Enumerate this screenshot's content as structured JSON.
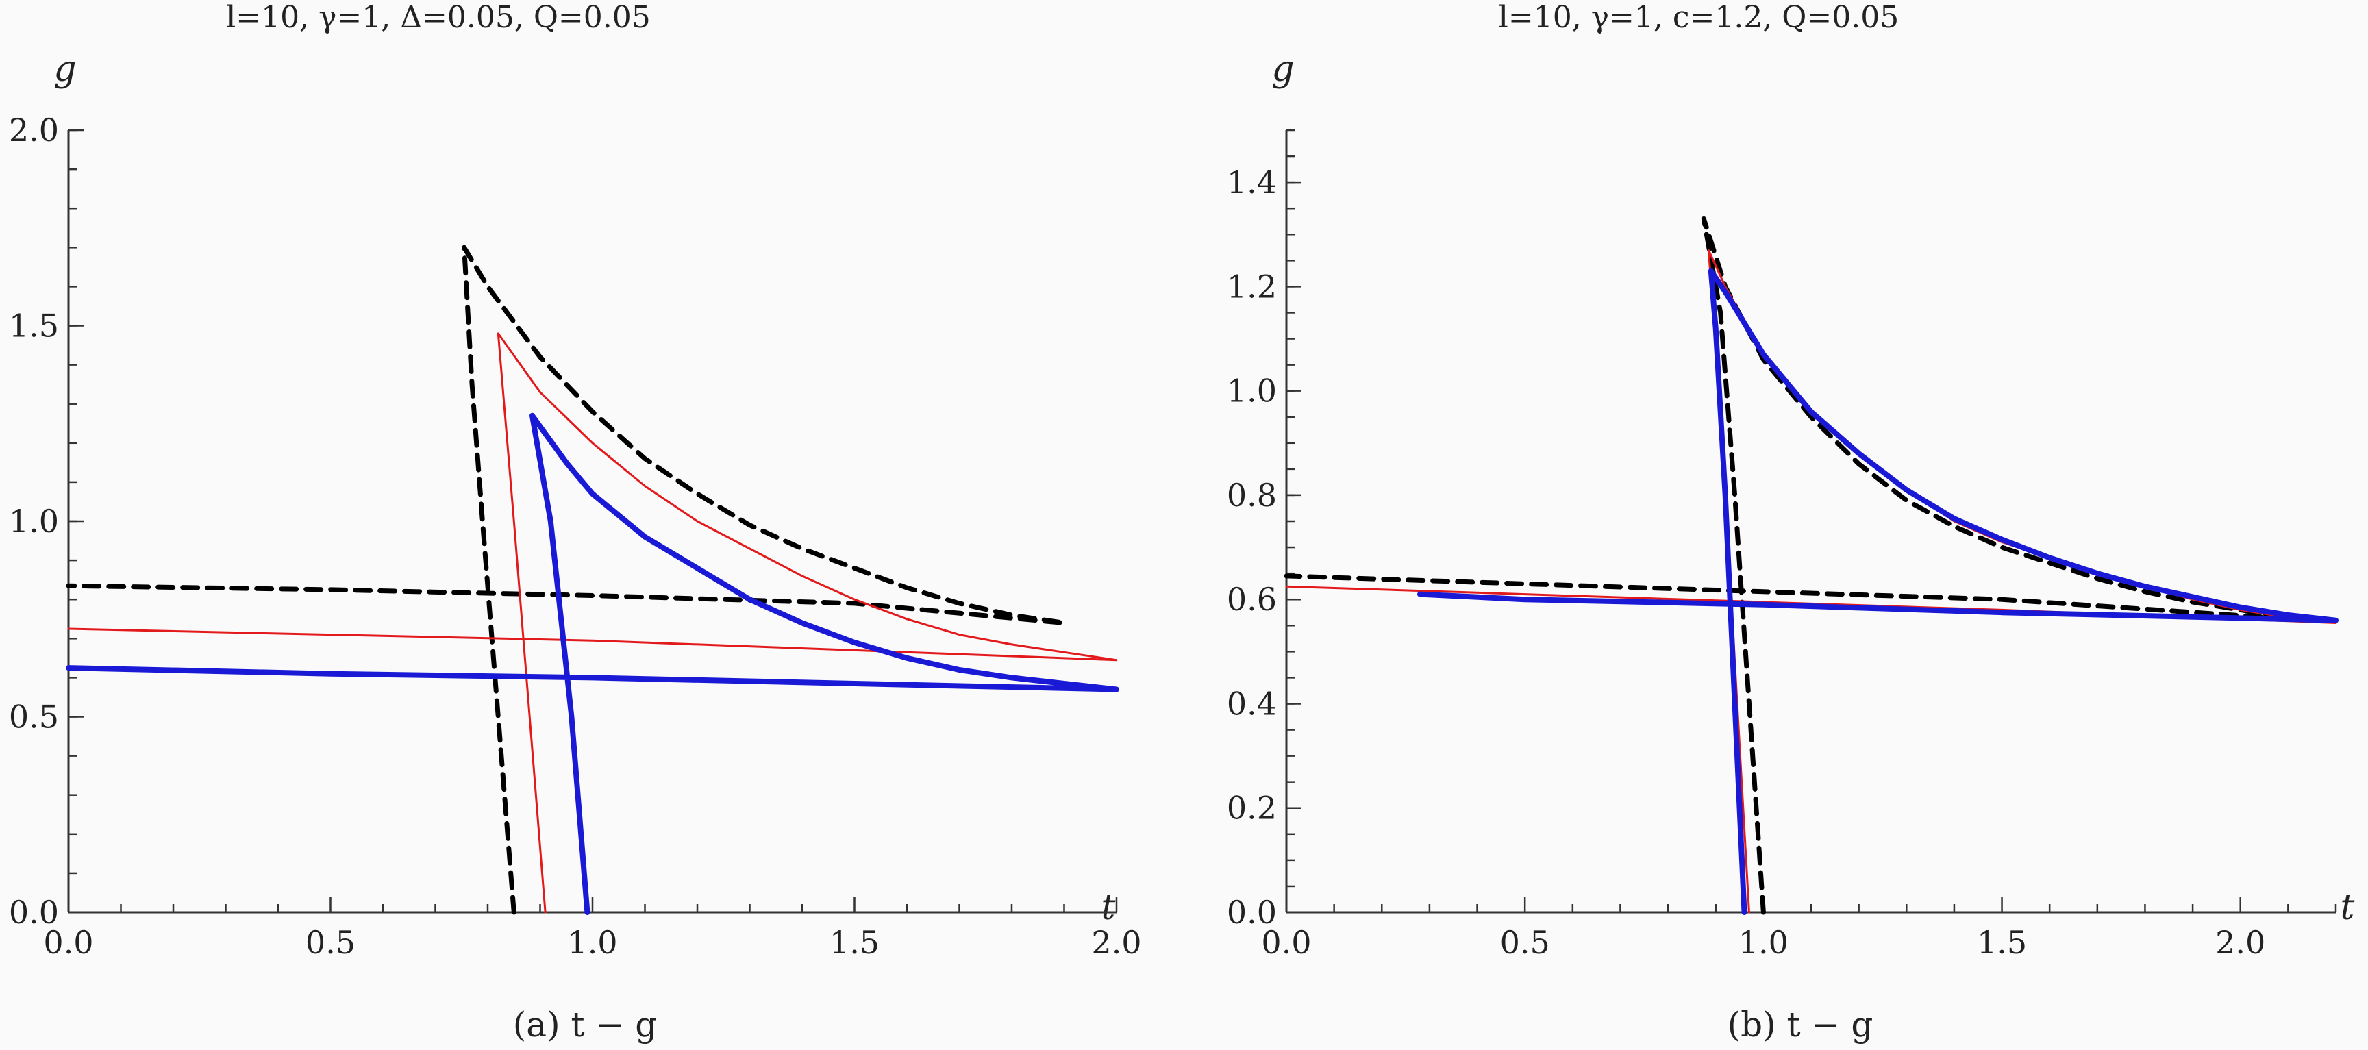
{
  "chart_data": [
    {
      "type": "line",
      "title": "l=10, γ=1, Δ=0.05, Q=0.05",
      "xlabel": "t",
      "ylabel": "g",
      "caption": "(a) t − g",
      "xlim": [
        0,
        2.0
      ],
      "ylim": [
        0,
        2.0
      ],
      "xticks": [
        "0.0",
        "0.5",
        "1.0",
        "1.5",
        "2.0"
      ],
      "yticks": [
        "0.0",
        "0.5",
        "1.0",
        "1.5",
        "2.0"
      ],
      "grid": false,
      "series": [
        {
          "color": "#000000",
          "dash": "dashed",
          "width": 7,
          "points": [
            [
              0.85,
              0.0
            ],
            [
              0.82,
              0.5
            ],
            [
              0.79,
              1.0
            ],
            [
              0.77,
              1.35
            ],
            [
              0.755,
              1.7
            ],
            [
              0.8,
              1.6
            ],
            [
              0.9,
              1.42
            ],
            [
              1.0,
              1.28
            ],
            [
              1.1,
              1.16
            ],
            [
              1.2,
              1.07
            ],
            [
              1.3,
              0.99
            ],
            [
              1.4,
              0.93
            ],
            [
              1.5,
              0.88
            ],
            [
              1.6,
              0.83
            ],
            [
              1.7,
              0.79
            ],
            [
              1.8,
              0.76
            ],
            [
              1.9,
              0.74
            ],
            [
              1.5,
              0.79
            ],
            [
              1.0,
              0.81
            ],
            [
              0.5,
              0.825
            ],
            [
              0.0,
              0.835
            ]
          ]
        },
        {
          "color": "#e31a1c",
          "dash": "solid",
          "width": 3,
          "points": [
            [
              0.91,
              0.0
            ],
            [
              0.88,
              0.5
            ],
            [
              0.85,
              1.0
            ],
            [
              0.82,
              1.48
            ],
            [
              0.9,
              1.33
            ],
            [
              1.0,
              1.2
            ],
            [
              1.1,
              1.09
            ],
            [
              1.2,
              1.0
            ],
            [
              1.3,
              0.93
            ],
            [
              1.4,
              0.86
            ],
            [
              1.5,
              0.8
            ],
            [
              1.6,
              0.75
            ],
            [
              1.7,
              0.71
            ],
            [
              1.8,
              0.685
            ],
            [
              1.9,
              0.665
            ],
            [
              2.0,
              0.645
            ],
            [
              1.5,
              0.67
            ],
            [
              1.0,
              0.695
            ],
            [
              0.5,
              0.71
            ],
            [
              0.0,
              0.725
            ]
          ]
        },
        {
          "color": "#1a1ad6",
          "dash": "solid",
          "width": 8,
          "points": [
            [
              0.99,
              0.0
            ],
            [
              0.96,
              0.5
            ],
            [
              0.92,
              1.0
            ],
            [
              0.885,
              1.27
            ],
            [
              0.95,
              1.15
            ],
            [
              1.0,
              1.07
            ],
            [
              1.1,
              0.96
            ],
            [
              1.2,
              0.88
            ],
            [
              1.3,
              0.8
            ],
            [
              1.4,
              0.74
            ],
            [
              1.5,
              0.69
            ],
            [
              1.6,
              0.65
            ],
            [
              1.7,
              0.62
            ],
            [
              1.8,
              0.6
            ],
            [
              1.9,
              0.585
            ],
            [
              2.0,
              0.57
            ],
            [
              1.5,
              0.585
            ],
            [
              1.0,
              0.6
            ],
            [
              0.5,
              0.61
            ],
            [
              0.0,
              0.625
            ]
          ]
        }
      ]
    },
    {
      "type": "line",
      "title": "l=10, γ=1, c=1.2, Q=0.05",
      "xlabel": "t",
      "ylabel": "g",
      "caption": "(b) t − g",
      "xlim": [
        0,
        2.2
      ],
      "ylim": [
        0,
        1.5
      ],
      "xticks": [
        "0.0",
        "0.5",
        "1.0",
        "1.5",
        "2.0"
      ],
      "yticks": [
        "0.0",
        "0.2",
        "0.4",
        "0.6",
        "0.8",
        "1.0",
        "1.2",
        "1.4"
      ],
      "grid": false,
      "series": [
        {
          "color": "#000000",
          "dash": "dashed",
          "width": 7,
          "points": [
            [
              1.0,
              0.0
            ],
            [
              0.97,
              0.4
            ],
            [
              0.94,
              0.8
            ],
            [
              0.91,
              1.15
            ],
            [
              0.875,
              1.33
            ],
            [
              0.92,
              1.2
            ],
            [
              1.0,
              1.06
            ],
            [
              1.1,
              0.95
            ],
            [
              1.2,
              0.86
            ],
            [
              1.3,
              0.79
            ],
            [
              1.4,
              0.74
            ],
            [
              1.5,
              0.7
            ],
            [
              1.6,
              0.67
            ],
            [
              1.7,
              0.64
            ],
            [
              1.8,
              0.615
            ],
            [
              1.9,
              0.595
            ],
            [
              2.0,
              0.58
            ],
            [
              2.1,
              0.565
            ],
            [
              2.15,
              0.56
            ],
            [
              1.5,
              0.6
            ],
            [
              1.0,
              0.615
            ],
            [
              0.5,
              0.63
            ],
            [
              0.0,
              0.645
            ]
          ]
        },
        {
          "color": "#e31a1c",
          "dash": "solid",
          "width": 3,
          "points": [
            [
              0.97,
              0.0
            ],
            [
              0.945,
              0.4
            ],
            [
              0.92,
              0.8
            ],
            [
              0.895,
              1.15
            ],
            [
              0.885,
              1.27
            ],
            [
              0.92,
              1.2
            ],
            [
              1.0,
              1.07
            ],
            [
              1.1,
              0.96
            ],
            [
              1.2,
              0.88
            ],
            [
              1.3,
              0.81
            ],
            [
              1.4,
              0.75
            ],
            [
              1.5,
              0.71
            ],
            [
              1.6,
              0.68
            ],
            [
              1.7,
              0.65
            ],
            [
              1.8,
              0.625
            ],
            [
              1.9,
              0.6
            ],
            [
              2.0,
              0.58
            ],
            [
              2.1,
              0.565
            ],
            [
              2.2,
              0.555
            ],
            [
              1.5,
              0.58
            ],
            [
              1.0,
              0.595
            ],
            [
              0.5,
              0.61
            ],
            [
              0.0,
              0.625
            ]
          ]
        },
        {
          "color": "#1a1ad6",
          "dash": "solid",
          "width": 8,
          "points": [
            [
              0.96,
              0.0
            ],
            [
              0.94,
              0.4
            ],
            [
              0.92,
              0.8
            ],
            [
              0.9,
              1.12
            ],
            [
              0.89,
              1.23
            ],
            [
              0.92,
              1.19
            ],
            [
              1.0,
              1.07
            ],
            [
              1.1,
              0.96
            ],
            [
              1.2,
              0.88
            ],
            [
              1.3,
              0.81
            ],
            [
              1.4,
              0.755
            ],
            [
              1.5,
              0.715
            ],
            [
              1.6,
              0.68
            ],
            [
              1.7,
              0.65
            ],
            [
              1.8,
              0.625
            ],
            [
              1.9,
              0.605
            ],
            [
              2.0,
              0.585
            ],
            [
              2.1,
              0.57
            ],
            [
              2.2,
              0.56
            ],
            [
              1.5,
              0.575
            ],
            [
              1.0,
              0.59
            ],
            [
              0.5,
              0.6
            ],
            [
              0.28,
              0.61
            ]
          ]
        }
      ]
    }
  ]
}
